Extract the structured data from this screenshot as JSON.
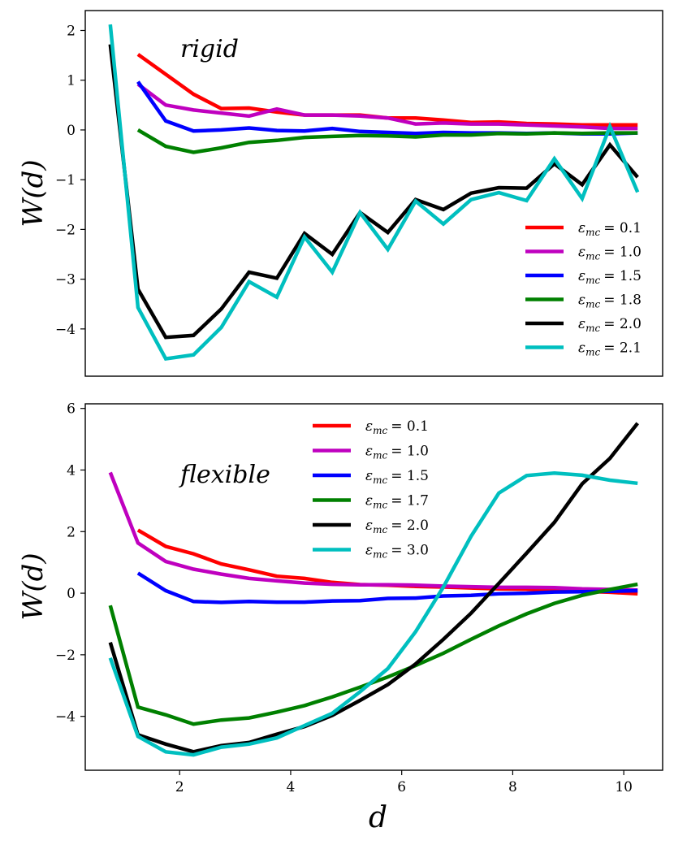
{
  "chart_data": [
    {
      "type": "line",
      "panel": "top",
      "annotation": "rigid",
      "xlabel": "",
      "ylabel": "W(d)",
      "xlim": [
        0.3,
        10.7
      ],
      "ylim": [
        -4.95,
        2.4
      ],
      "xticks": [],
      "yticks": [
        2,
        1,
        0,
        -1,
        -2,
        -3,
        -4
      ],
      "legend_position": "lower-right",
      "series": [
        {
          "name": "ε_mc = 0.1",
          "sym": "ε",
          "sub": "mc",
          "val": "= 0.1",
          "color": "#ff0000",
          "x": [
            1.25,
            1.75,
            2.25,
            2.75,
            3.25,
            3.75,
            4.25,
            4.75,
            5.25,
            5.75,
            6.25,
            6.75,
            7.25,
            7.75,
            8.25,
            8.75,
            9.25,
            9.75,
            10.25
          ],
          "y": [
            1.52,
            1.12,
            0.72,
            0.43,
            0.44,
            0.36,
            0.3,
            0.3,
            0.3,
            0.24,
            0.24,
            0.2,
            0.15,
            0.16,
            0.13,
            0.12,
            0.1,
            0.1,
            0.1
          ]
        },
        {
          "name": "ε_mc = 1.0",
          "sym": "ε",
          "sub": "mc",
          "val": "= 1.0",
          "color": "#bf00bf",
          "x": [
            1.25,
            1.75,
            2.25,
            2.75,
            3.25,
            3.75,
            4.25,
            4.75,
            5.25,
            5.75,
            6.25,
            6.75,
            7.25,
            7.75,
            8.25,
            8.75,
            9.25,
            9.75,
            10.25
          ],
          "y": [
            0.92,
            0.5,
            0.4,
            0.34,
            0.28,
            0.42,
            0.3,
            0.3,
            0.28,
            0.24,
            0.12,
            0.14,
            0.12,
            0.12,
            0.1,
            0.08,
            0.06,
            0.03,
            0.03
          ]
        },
        {
          "name": "ε_mc = 1.5",
          "sym": "ε",
          "sub": "mc",
          "val": "= 1.5",
          "color": "#0000ff",
          "x": [
            1.25,
            1.75,
            2.25,
            2.75,
            3.25,
            3.75,
            4.25,
            4.75,
            5.25,
            5.75,
            6.25,
            6.75,
            7.25,
            7.75,
            8.25,
            8.75,
            9.25,
            9.75,
            10.25
          ],
          "y": [
            0.97,
            0.18,
            -0.02,
            0.0,
            0.04,
            -0.01,
            -0.02,
            0.03,
            -0.03,
            -0.05,
            -0.07,
            -0.05,
            -0.06,
            -0.06,
            -0.07,
            -0.06,
            -0.08,
            -0.08,
            -0.06
          ]
        },
        {
          "name": "ε_mc = 1.8",
          "sym": "ε",
          "sub": "mc",
          "val": "= 1.8",
          "color": "#008000",
          "x": [
            1.25,
            1.75,
            2.25,
            2.75,
            3.25,
            3.75,
            4.25,
            4.75,
            5.25,
            5.75,
            6.25,
            6.75,
            7.25,
            7.75,
            8.25,
            8.75,
            9.25,
            9.75,
            10.25
          ],
          "y": [
            0.0,
            -0.33,
            -0.45,
            -0.36,
            -0.25,
            -0.21,
            -0.15,
            -0.13,
            -0.11,
            -0.12,
            -0.14,
            -0.1,
            -0.1,
            -0.07,
            -0.08,
            -0.06,
            -0.07,
            -0.06,
            -0.06
          ]
        },
        {
          "name": "ε_mc = 2.0",
          "sym": "ε",
          "sub": "mc",
          "val": "= 2.0",
          "color": "#000000",
          "x": [
            0.75,
            1.25,
            1.75,
            2.25,
            2.75,
            3.25,
            3.75,
            4.25,
            4.75,
            5.25,
            5.75,
            6.25,
            6.75,
            7.25,
            7.75,
            8.25,
            8.75,
            9.25,
            9.75,
            10.25
          ],
          "y": [
            1.72,
            -3.2,
            -4.17,
            -4.13,
            -3.6,
            -2.86,
            -2.98,
            -2.08,
            -2.5,
            -1.66,
            -2.06,
            -1.4,
            -1.6,
            -1.27,
            -1.16,
            -1.17,
            -0.68,
            -1.1,
            -0.3,
            -0.95
          ]
        },
        {
          "name": "ε_mc = 2.1",
          "sym": "ε",
          "sub": "mc",
          "val": "= 2.1",
          "color": "#00bfbf",
          "x": [
            0.75,
            1.25,
            1.75,
            2.25,
            2.75,
            3.25,
            3.75,
            4.25,
            4.75,
            5.25,
            5.75,
            6.25,
            6.75,
            7.25,
            7.75,
            8.25,
            8.75,
            9.25,
            9.75,
            10.25
          ],
          "y": [
            2.12,
            -3.57,
            -4.6,
            -4.52,
            -3.97,
            -3.05,
            -3.36,
            -2.15,
            -2.86,
            -1.66,
            -2.4,
            -1.43,
            -1.89,
            -1.4,
            -1.26,
            -1.42,
            -0.58,
            -1.38,
            0.07,
            -1.25
          ]
        }
      ]
    },
    {
      "type": "line",
      "panel": "bottom",
      "annotation": "flexible",
      "xlabel": "d",
      "ylabel": "W(d)",
      "xlim": [
        0.3,
        10.7
      ],
      "ylim": [
        -5.75,
        6.15
      ],
      "xticks": [
        2,
        4,
        6,
        8,
        10
      ],
      "yticks": [
        6,
        4,
        2,
        0,
        -2,
        -4
      ],
      "legend_position": "upper-center",
      "series": [
        {
          "name": "ε_mc = 0.1",
          "sym": "ε",
          "sub": "mc",
          "val": "= 0.1",
          "color": "#ff0000",
          "x": [
            1.25,
            1.75,
            2.25,
            2.75,
            3.25,
            3.75,
            4.25,
            4.75,
            5.25,
            5.75,
            6.25,
            6.75,
            7.25,
            7.75,
            8.25,
            8.75,
            9.25,
            9.75,
            10.25
          ],
          "y": [
            2.05,
            1.52,
            1.28,
            0.95,
            0.76,
            0.55,
            0.48,
            0.35,
            0.28,
            0.26,
            0.22,
            0.2,
            0.17,
            0.14,
            0.13,
            0.1,
            0.06,
            0.03,
            -0.02
          ]
        },
        {
          "name": "ε_mc = 1.0",
          "sym": "ε",
          "sub": "mc",
          "val": "= 1.0",
          "color": "#bf00bf",
          "x": [
            0.75,
            1.25,
            1.75,
            2.25,
            2.75,
            3.25,
            3.75,
            4.25,
            4.75,
            5.25,
            5.75,
            6.25,
            6.75,
            7.25,
            7.75,
            8.25,
            8.75,
            9.25,
            9.75,
            10.25
          ],
          "y": [
            3.92,
            1.63,
            1.03,
            0.78,
            0.62,
            0.48,
            0.4,
            0.33,
            0.29,
            0.27,
            0.27,
            0.26,
            0.23,
            0.21,
            0.19,
            0.19,
            0.18,
            0.14,
            0.12,
            0.1
          ]
        },
        {
          "name": "ε_mc = 1.5",
          "sym": "ε",
          "sub": "mc",
          "val": "= 1.5",
          "color": "#0000ff",
          "x": [
            1.25,
            1.75,
            2.25,
            2.75,
            3.25,
            3.75,
            4.25,
            4.75,
            5.25,
            5.75,
            6.25,
            6.75,
            7.25,
            7.75,
            8.25,
            8.75,
            9.25,
            9.75,
            10.25
          ],
          "y": [
            0.65,
            0.08,
            -0.27,
            -0.3,
            -0.27,
            -0.29,
            -0.29,
            -0.25,
            -0.24,
            -0.17,
            -0.16,
            -0.09,
            -0.07,
            -0.02,
            0.0,
            0.04,
            0.05,
            0.06,
            0.08
          ]
        },
        {
          "name": "ε_mc = 1.7",
          "sym": "ε",
          "sub": "mc",
          "val": "= 1.7",
          "color": "#008000",
          "x": [
            0.75,
            1.25,
            1.75,
            2.25,
            2.75,
            3.25,
            3.75,
            4.25,
            4.75,
            5.25,
            5.75,
            6.25,
            6.75,
            7.25,
            7.75,
            8.25,
            8.75,
            9.25,
            9.75,
            10.25
          ],
          "y": [
            -0.4,
            -3.7,
            -3.95,
            -4.25,
            -4.12,
            -4.05,
            -3.86,
            -3.65,
            -3.37,
            -3.05,
            -2.72,
            -2.35,
            -1.95,
            -1.5,
            -1.06,
            -0.67,
            -0.33,
            -0.07,
            0.12,
            0.29
          ]
        },
        {
          "name": "ε_mc = 2.0",
          "sym": "ε",
          "sub": "mc",
          "val": "= 2.0",
          "color": "#000000",
          "x": [
            0.75,
            1.25,
            1.75,
            2.25,
            2.75,
            3.25,
            3.75,
            4.25,
            4.75,
            5.25,
            5.75,
            6.25,
            6.75,
            7.25,
            7.75,
            8.25,
            8.75,
            9.25,
            9.75,
            10.25
          ],
          "y": [
            -1.6,
            -4.6,
            -4.9,
            -5.15,
            -4.95,
            -4.85,
            -4.58,
            -4.33,
            -3.97,
            -3.48,
            -2.97,
            -2.3,
            -1.5,
            -0.65,
            0.32,
            1.3,
            2.3,
            3.55,
            4.38,
            5.52
          ]
        },
        {
          "name": "ε_mc = 3.0",
          "sym": "ε",
          "sub": "mc",
          "val": "= 3.0",
          "color": "#00bfbf",
          "x": [
            0.75,
            1.25,
            1.75,
            2.25,
            2.75,
            3.25,
            3.75,
            4.25,
            4.75,
            5.25,
            5.75,
            6.25,
            6.75,
            7.25,
            7.75,
            8.25,
            8.75,
            9.25,
            9.75,
            10.25
          ],
          "y": [
            -2.1,
            -4.65,
            -5.15,
            -5.25,
            -5.0,
            -4.9,
            -4.7,
            -4.3,
            -3.9,
            -3.2,
            -2.45,
            -1.25,
            0.2,
            1.85,
            3.25,
            3.82,
            3.9,
            3.83,
            3.67,
            3.57
          ]
        }
      ]
    }
  ]
}
